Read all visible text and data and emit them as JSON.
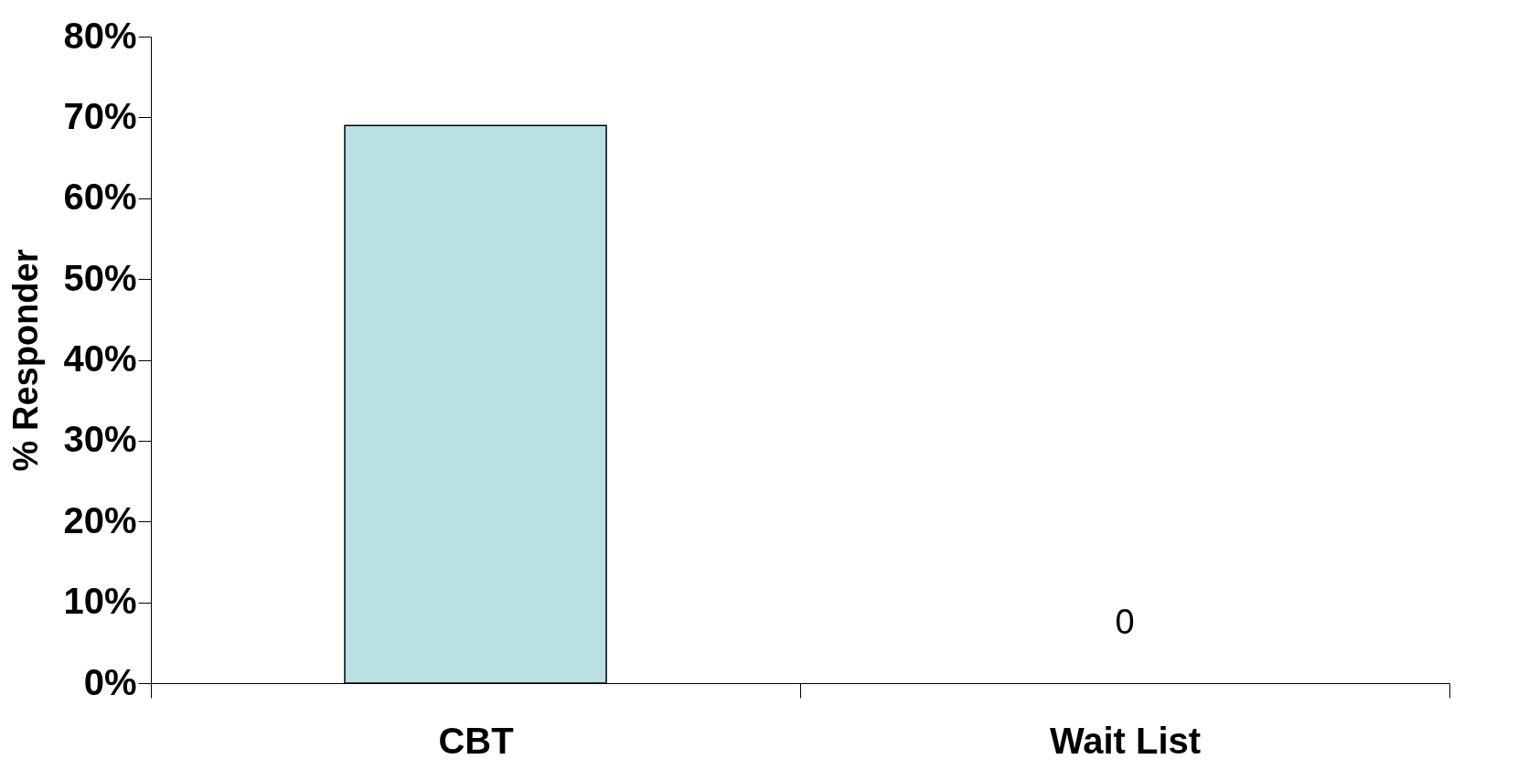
{
  "chart_data": {
    "type": "bar",
    "ylabel": "% Responder",
    "categories": [
      "CBT",
      "Wait List"
    ],
    "values": [
      69,
      0
    ],
    "value_labels": [
      null,
      "0"
    ],
    "color": "#b9e0e3",
    "ylim": [
      0,
      80
    ],
    "yticks": [
      {
        "value": 0,
        "label": "0%"
      },
      {
        "value": 10,
        "label": "10%"
      },
      {
        "value": 20,
        "label": "20%"
      },
      {
        "value": 30,
        "label": "30%"
      },
      {
        "value": 40,
        "label": "40%"
      },
      {
        "value": 50,
        "label": "50%"
      },
      {
        "value": 60,
        "label": "60%"
      },
      {
        "value": 70,
        "label": "70%"
      },
      {
        "value": 80,
        "label": "80%"
      }
    ],
    "grid": false
  }
}
